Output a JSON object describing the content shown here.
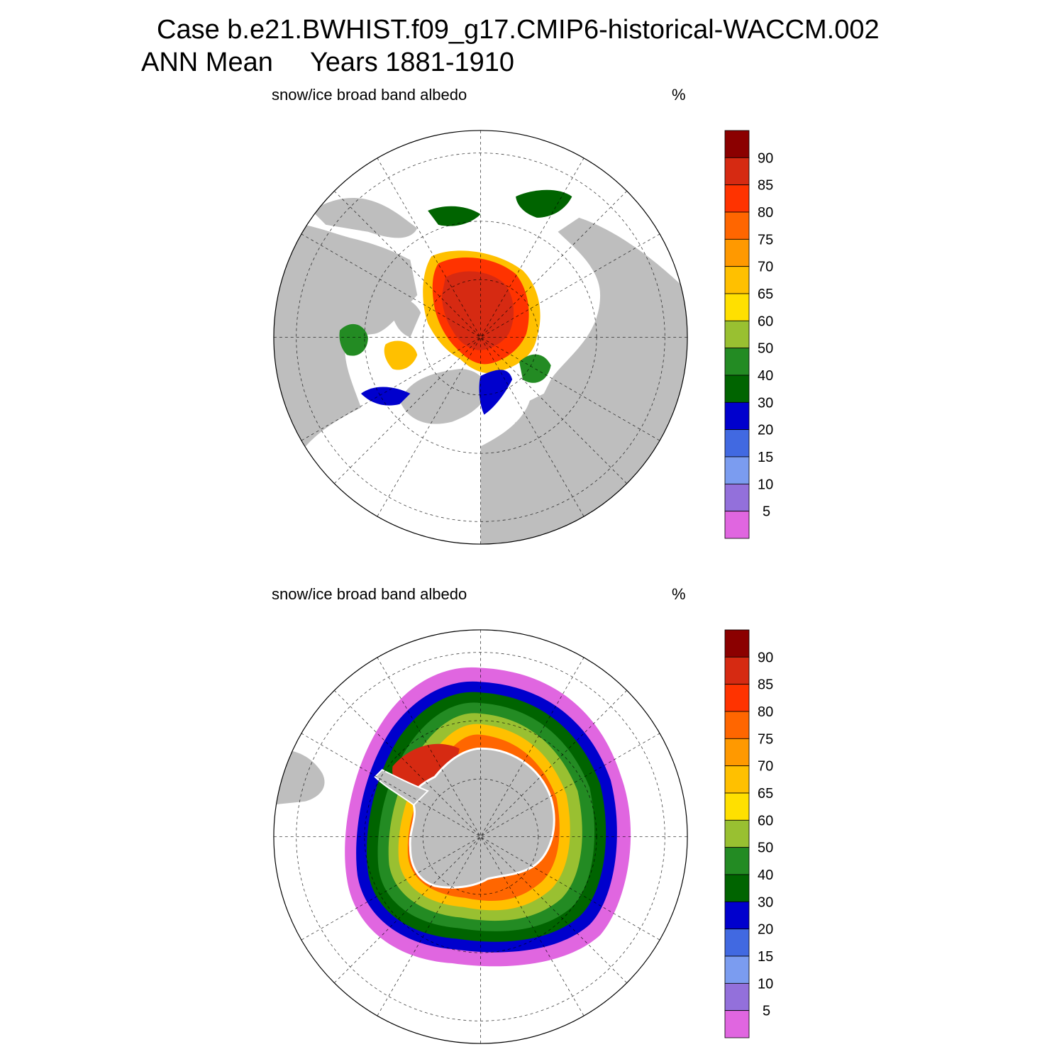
{
  "header": {
    "case_line": "Case b.e21.BWHIST.f09_g17.CMIP6-historical-WACCM.002",
    "period_line": "ANN Mean     Years 1881-1910"
  },
  "panels": [
    {
      "hemisphere": "north",
      "variable": "snow/ice broad band albedo",
      "units": "%"
    },
    {
      "hemisphere": "south",
      "variable": "snow/ice broad band albedo",
      "units": "%"
    }
  ],
  "colorbar": {
    "labels": [
      "90",
      "85",
      "80",
      "75",
      "70",
      "65",
      "60",
      "50",
      "40",
      "30",
      "20",
      "15",
      "10",
      "5"
    ],
    "colors": [
      "#8b0000",
      "#d62a12",
      "#ff3300",
      "#ff6600",
      "#ff9900",
      "#ffc000",
      "#ffe000",
      "#99c031",
      "#238b23",
      "#006400",
      "#0000cd",
      "#4169e1",
      "#7b9cf0",
      "#9370db",
      "#e066e0"
    ]
  }
}
